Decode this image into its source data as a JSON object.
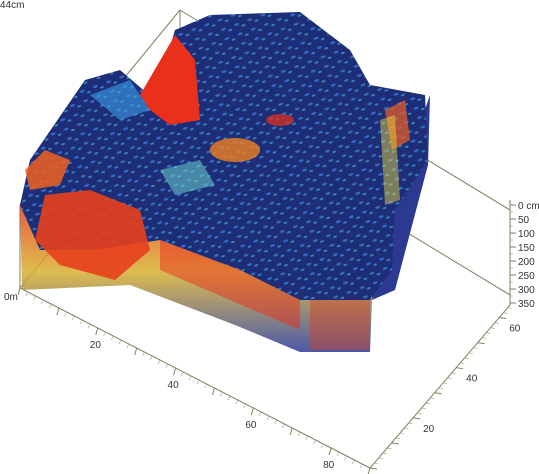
{
  "chart_data": {
    "type": "heatmap",
    "title": "",
    "corner_label": "44cm",
    "origin_label": "0m",
    "x_axis": {
      "ticks": [
        20,
        40,
        60,
        80
      ]
    },
    "y_axis": {
      "ticks": [
        20,
        40,
        60
      ]
    },
    "depth_axis": {
      "ticks": [
        "0 cm",
        "50",
        "100",
        "150",
        "200",
        "250",
        "300",
        "350"
      ]
    },
    "colorscale": [
      "#1a2a6c",
      "#2f4fb0",
      "#3aa0e8",
      "#6fe0d0",
      "#f0e040",
      "#f08020",
      "#e8301a"
    ],
    "grid": false,
    "legend": "none"
  }
}
